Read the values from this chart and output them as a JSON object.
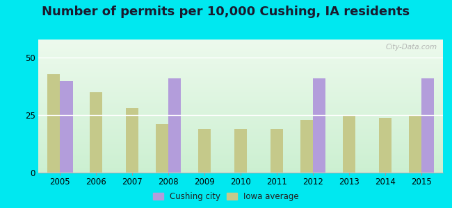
{
  "years": [
    2005,
    2006,
    2007,
    2008,
    2009,
    2010,
    2011,
    2012,
    2013,
    2014,
    2015
  ],
  "cushing": [
    40,
    0,
    0,
    41,
    0,
    0,
    0,
    41,
    0,
    0,
    41
  ],
  "iowa": [
    43,
    35,
    28,
    21,
    19,
    19,
    19,
    23,
    25,
    24,
    25
  ],
  "cushing_color": "#b39ddb",
  "iowa_color": "#c5c98a",
  "title": "Number of permits per 10,000 Cushing, IA residents",
  "title_fontsize": 13,
  "outer_bg": "#00e8f0",
  "ylim": [
    0,
    58
  ],
  "yticks": [
    0,
    25,
    50
  ],
  "bar_width": 0.35,
  "watermark": "City-Data.com"
}
